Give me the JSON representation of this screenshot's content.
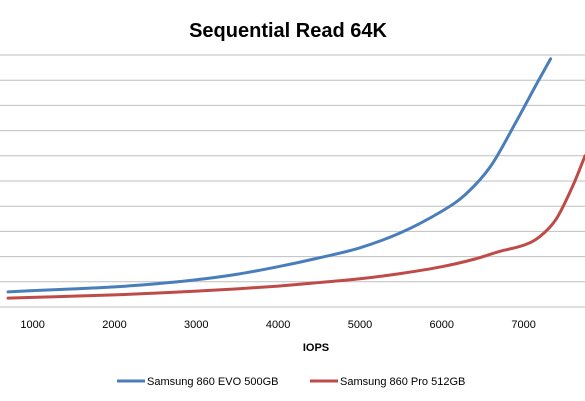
{
  "chart_data": {
    "type": "line",
    "title": "Sequential Read 64K",
    "xlabel": "IOPS",
    "ylabel": "",
    "xlim": [
      650,
      7750
    ],
    "ylim": [
      0,
      10
    ],
    "x_ticks": [
      1000,
      2000,
      3000,
      4000,
      5000,
      6000,
      7000
    ],
    "gridlines": 10,
    "grid": true,
    "legend_position": "bottom",
    "series": [
      {
        "name": "Samsung 860 EVO 500GB",
        "color": "#4a7ebb",
        "points": [
          [
            700,
            0.6
          ],
          [
            1000,
            0.65
          ],
          [
            1500,
            0.72
          ],
          [
            2000,
            0.8
          ],
          [
            2500,
            0.92
          ],
          [
            3000,
            1.08
          ],
          [
            3500,
            1.3
          ],
          [
            4000,
            1.6
          ],
          [
            4500,
            1.95
          ],
          [
            5000,
            2.35
          ],
          [
            5500,
            2.95
          ],
          [
            6000,
            3.8
          ],
          [
            6300,
            4.5
          ],
          [
            6600,
            5.6
          ],
          [
            6900,
            7.3
          ],
          [
            7150,
            8.8
          ],
          [
            7330,
            9.85
          ]
        ]
      },
      {
        "name": "Samsung 860 Pro 512GB",
        "color": "#be4b48",
        "points": [
          [
            700,
            0.35
          ],
          [
            1000,
            0.38
          ],
          [
            1500,
            0.43
          ],
          [
            2000,
            0.48
          ],
          [
            2500,
            0.55
          ],
          [
            3000,
            0.63
          ],
          [
            3500,
            0.72
          ],
          [
            4000,
            0.83
          ],
          [
            4500,
            0.97
          ],
          [
            5000,
            1.12
          ],
          [
            5500,
            1.33
          ],
          [
            6000,
            1.6
          ],
          [
            6400,
            1.9
          ],
          [
            6700,
            2.2
          ],
          [
            7000,
            2.45
          ],
          [
            7200,
            2.8
          ],
          [
            7400,
            3.5
          ],
          [
            7600,
            4.8
          ],
          [
            7750,
            6.0
          ]
        ]
      }
    ]
  }
}
